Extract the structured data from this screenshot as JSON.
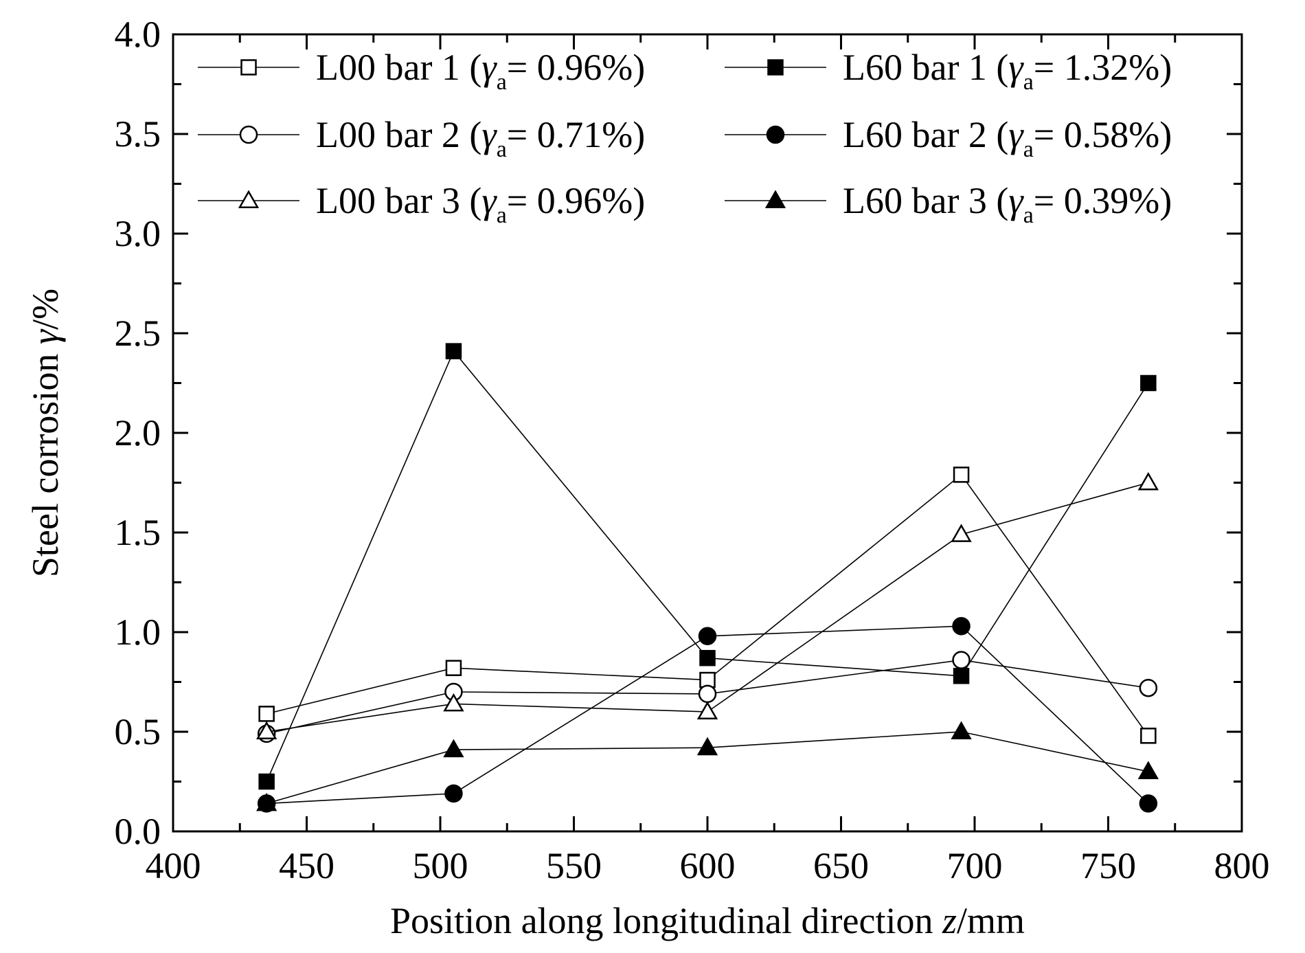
{
  "chart_data": {
    "type": "line",
    "xlabel": "Position along longitudinal direction z/mm",
    "ylabel": "Steel corrosion γ/%",
    "xlabel_parts": {
      "prefix": "Position along longitudinal direction ",
      "var": "z",
      "unit": "/mm"
    },
    "ylabel_parts": {
      "prefix": "Steel corrosion ",
      "var": "γ",
      "unit": "/%"
    },
    "xlim": [
      400,
      800
    ],
    "ylim": [
      0,
      4.0
    ],
    "x_ticks": [
      "400",
      "450",
      "500",
      "550",
      "600",
      "650",
      "700",
      "750",
      "800"
    ],
    "y_ticks": [
      "0.0",
      "0.5",
      "1.0",
      "1.5",
      "2.0",
      "2.5",
      "3.0",
      "3.5",
      "4.0"
    ],
    "x_tick_values": [
      400,
      450,
      500,
      550,
      600,
      650,
      700,
      750,
      800
    ],
    "y_tick_values": [
      0,
      0.5,
      1.0,
      1.5,
      2.0,
      2.5,
      3.0,
      3.5,
      4.0
    ],
    "grid": false,
    "legend_position": "top",
    "x": [
      435,
      505,
      600,
      695,
      765
    ],
    "series": [
      {
        "name": "L00 bar 1 (γa= 0.96%)",
        "label_prefix": "L00 bar 1 (",
        "label_var": "γ",
        "label_sub": "a",
        "label_suffix": "= 0.96%)",
        "marker": "square",
        "filled": false,
        "values": [
          0.59,
          0.82,
          0.76,
          1.79,
          0.48
        ]
      },
      {
        "name": "L60 bar 1 (γa= 1.32%)",
        "label_prefix": "L60 bar 1 (",
        "label_var": "γ",
        "label_sub": "a",
        "label_suffix": "= 1.32%)",
        "marker": "square",
        "filled": true,
        "values": [
          0.25,
          2.41,
          0.87,
          0.78,
          2.25
        ]
      },
      {
        "name": "L00 bar 2 (γa= 0.71%)",
        "label_prefix": "L00 bar 2 (",
        "label_var": "γ",
        "label_sub": "a",
        "label_suffix": "= 0.71%)",
        "marker": "circle",
        "filled": false,
        "values": [
          0.49,
          0.7,
          0.69,
          0.86,
          0.72
        ]
      },
      {
        "name": "L60 bar 2 (γa= 0.58%)",
        "label_prefix": "L60 bar 2 (",
        "label_var": "γ",
        "label_sub": "a",
        "label_suffix": "= 0.58%)",
        "marker": "circle",
        "filled": true,
        "values": [
          0.14,
          0.19,
          0.98,
          1.03,
          0.14
        ]
      },
      {
        "name": "L00 bar 3 (γa= 0.96%)",
        "label_prefix": "L00 bar 3 (",
        "label_var": "γ",
        "label_sub": "a",
        "label_suffix": "= 0.96%)",
        "marker": "triangle",
        "filled": false,
        "values": [
          0.5,
          0.64,
          0.6,
          1.49,
          1.75
        ]
      },
      {
        "name": "L60 bar 3 (γa= 0.39%)",
        "label_prefix": "L60 bar 3 (",
        "label_var": "γ",
        "label_sub": "a",
        "label_suffix": "= 0.39%)",
        "marker": "triangle",
        "filled": true,
        "values": [
          0.14,
          0.41,
          0.42,
          0.5,
          0.3
        ]
      }
    ]
  }
}
